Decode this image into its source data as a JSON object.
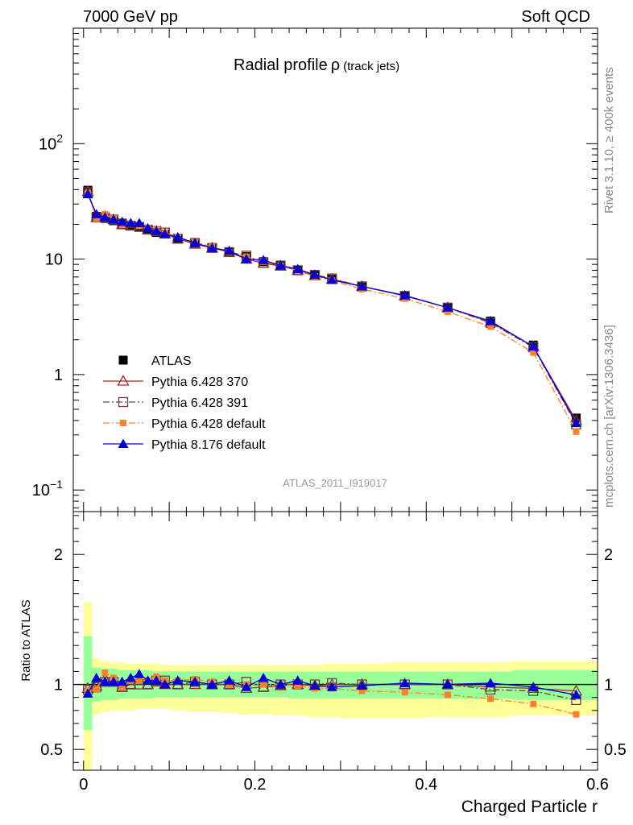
{
  "header": {
    "left": "7000 GeV pp",
    "right": "Soft QCD"
  },
  "side_text": {
    "rivet": "Rivet 3.1.10, ≥ 400k events",
    "mcplots": "mcplots.cern.ch [arXiv:1306.3436]"
  },
  "watermark": "ATLAS_2011_I919017",
  "colors": {
    "atlas": "#000000",
    "p370": "#a52a2a",
    "p391": "#6b4040",
    "p6def": "#ff7f2a",
    "p8def": "#0000dd",
    "band_inner": "#99ff99",
    "band_outer": "#ffff99"
  },
  "chart_data": [
    {
      "type": "line",
      "panel": "main",
      "title": "Radial profile",
      "title_symbol": "ρ",
      "title_suffix": "(track jets)",
      "xlabel": "",
      "ylabel": "",
      "yscale": "log",
      "xlim": [
        -0.012,
        0.6
      ],
      "ylim": [
        0.065,
        1000
      ],
      "yticks": [
        {
          "v": 0.1,
          "base": "10",
          "exp": "−1"
        },
        {
          "v": 1,
          "base": "1",
          "exp": ""
        },
        {
          "v": 10,
          "base": "10",
          "exp": ""
        },
        {
          "v": 100,
          "base": "10",
          "exp": "2"
        }
      ],
      "x": [
        0.005,
        0.015,
        0.025,
        0.035,
        0.045,
        0.055,
        0.065,
        0.075,
        0.085,
        0.095,
        0.11,
        0.13,
        0.15,
        0.17,
        0.19,
        0.21,
        0.23,
        0.25,
        0.27,
        0.29,
        0.325,
        0.375,
        0.425,
        0.475,
        0.525,
        0.575
      ],
      "series": [
        {
          "name": "ATLAS",
          "key": "atlas",
          "marker": "square",
          "line": "none",
          "values": [
            39.5,
            23.5,
            22.5,
            21.5,
            20.5,
            19.5,
            19.0,
            18.0,
            17.0,
            16.5,
            15.0,
            13.5,
            12.5,
            11.5,
            10.5,
            9.5,
            8.8,
            8.0,
            7.3,
            6.7,
            5.8,
            4.8,
            3.8,
            2.9,
            1.8,
            0.42
          ]
        },
        {
          "name": "Pythia 6.428 370",
          "key": "p370",
          "marker": "triangle-open",
          "line": "solid",
          "values": [
            38.5,
            23.0,
            23.5,
            22.0,
            20.0,
            19.5,
            19.5,
            18.0,
            17.5,
            16.5,
            15.0,
            13.5,
            12.5,
            11.5,
            10.0,
            9.2,
            8.7,
            8.0,
            7.2,
            6.7,
            5.8,
            4.8,
            3.8,
            2.85,
            1.75,
            0.4
          ]
        },
        {
          "name": "Pythia 6.428 391",
          "key": "p391",
          "marker": "square-open",
          "line": "dashdot",
          "values": [
            38.0,
            23.0,
            23.0,
            22.0,
            20.0,
            19.5,
            19.0,
            18.0,
            17.5,
            17.0,
            15.0,
            13.8,
            12.5,
            11.5,
            10.7,
            9.3,
            8.8,
            8.0,
            7.3,
            6.8,
            5.8,
            4.8,
            3.8,
            2.8,
            1.72,
            0.37
          ]
        },
        {
          "name": "Pythia 6.428 default",
          "key": "p6def",
          "marker": "square-small",
          "line": "dashdot",
          "values": [
            37.5,
            22.5,
            24.5,
            22.5,
            20.0,
            20.0,
            19.5,
            18.5,
            18.0,
            17.0,
            15.5,
            14.0,
            12.8,
            11.5,
            10.5,
            9.5,
            8.8,
            7.9,
            7.1,
            6.5,
            5.5,
            4.55,
            3.5,
            2.6,
            1.55,
            0.32
          ]
        },
        {
          "name": "Pythia 8.176 default",
          "key": "p8def",
          "marker": "triangle",
          "line": "solid",
          "values": [
            36.5,
            24.5,
            23.0,
            22.0,
            21.0,
            20.5,
            20.5,
            18.5,
            17.5,
            16.5,
            15.5,
            13.8,
            12.5,
            11.8,
            10.0,
            9.8,
            8.8,
            8.2,
            7.3,
            6.6,
            5.8,
            4.85,
            3.8,
            2.9,
            1.75,
            0.38
          ]
        }
      ]
    },
    {
      "type": "line",
      "panel": "ratio",
      "xlabel": "Charged Particle r",
      "ylabel": "Ratio to ATLAS",
      "xlim": [
        -0.012,
        0.6
      ],
      "ylim": [
        0.34,
        2.33
      ],
      "yticks": [
        {
          "v": 0.5,
          "label": "0.5"
        },
        {
          "v": 1,
          "label": "1"
        },
        {
          "v": 2,
          "label": "2"
        }
      ],
      "xticks": [
        {
          "v": 0,
          "label": "0"
        },
        {
          "v": 0.2,
          "label": "0.2"
        },
        {
          "v": 0.4,
          "label": "0.4"
        },
        {
          "v": 0.6,
          "label": "0.6"
        }
      ],
      "band_edges": [
        0.0,
        0.01,
        0.02,
        0.03,
        0.04,
        0.05,
        0.06,
        0.07,
        0.08,
        0.09,
        0.1,
        0.12,
        0.14,
        0.16,
        0.18,
        0.2,
        0.22,
        0.24,
        0.26,
        0.28,
        0.3,
        0.35,
        0.4,
        0.45,
        0.5,
        0.55,
        0.6
      ],
      "band_inner": [
        [
          0.65,
          1.37
        ],
        [
          0.87,
          1.13
        ],
        [
          0.88,
          1.12
        ],
        [
          0.88,
          1.12
        ],
        [
          0.89,
          1.11
        ],
        [
          0.89,
          1.11
        ],
        [
          0.89,
          1.11
        ],
        [
          0.89,
          1.11
        ],
        [
          0.9,
          1.1
        ],
        [
          0.9,
          1.1
        ],
        [
          0.9,
          1.1
        ],
        [
          0.9,
          1.1
        ],
        [
          0.9,
          1.1
        ],
        [
          0.9,
          1.1
        ],
        [
          0.9,
          1.1
        ],
        [
          0.9,
          1.1
        ],
        [
          0.9,
          1.1
        ],
        [
          0.89,
          1.1
        ],
        [
          0.89,
          1.1
        ],
        [
          0.89,
          1.1
        ],
        [
          0.89,
          1.1
        ],
        [
          0.89,
          1.1
        ],
        [
          0.89,
          1.1
        ],
        [
          0.89,
          1.1
        ],
        [
          0.88,
          1.11
        ],
        [
          0.88,
          1.11
        ]
      ],
      "band_outer": [
        [
          0.33,
          1.63
        ],
        [
          0.77,
          1.2
        ],
        [
          0.79,
          1.18
        ],
        [
          0.8,
          1.17
        ],
        [
          0.8,
          1.17
        ],
        [
          0.8,
          1.16
        ],
        [
          0.81,
          1.16
        ],
        [
          0.81,
          1.16
        ],
        [
          0.81,
          1.16
        ],
        [
          0.81,
          1.15
        ],
        [
          0.8,
          1.15
        ],
        [
          0.79,
          1.15
        ],
        [
          0.79,
          1.15
        ],
        [
          0.78,
          1.15
        ],
        [
          0.77,
          1.15
        ],
        [
          0.77,
          1.15
        ],
        [
          0.76,
          1.15
        ],
        [
          0.76,
          1.15
        ],
        [
          0.75,
          1.15
        ],
        [
          0.75,
          1.16
        ],
        [
          0.74,
          1.16
        ],
        [
          0.74,
          1.17
        ],
        [
          0.75,
          1.17
        ],
        [
          0.75,
          1.17
        ],
        [
          0.76,
          1.18
        ],
        [
          0.76,
          1.18
        ]
      ],
      "series": [
        {
          "name": "Pythia 6.428 370",
          "key": "p370",
          "marker": "triangle-open",
          "line": "solid",
          "values": [
            0.97,
            0.99,
            1.04,
            1.02,
            0.98,
            1.0,
            1.03,
            1.0,
            1.02,
            1.0,
            1.0,
            1.0,
            1.0,
            1.0,
            0.97,
            0.98,
            0.99,
            1.0,
            0.99,
            1.0,
            1.0,
            1.0,
            1.0,
            0.98,
            0.97,
            0.95
          ]
        },
        {
          "name": "Pythia 6.428 391",
          "key": "p391",
          "marker": "square-open",
          "line": "dashdot",
          "values": [
            0.96,
            0.98,
            1.02,
            1.02,
            0.98,
            1.0,
            1.0,
            1.0,
            1.03,
            1.03,
            1.0,
            1.02,
            1.0,
            1.0,
            1.02,
            0.98,
            1.0,
            1.0,
            1.0,
            1.01,
            1.0,
            1.0,
            1.0,
            0.96,
            0.95,
            0.88
          ]
        },
        {
          "name": "Pythia 6.428 default",
          "key": "p6def",
          "marker": "square-small",
          "line": "dashdot",
          "values": [
            0.95,
            0.96,
            1.09,
            1.05,
            0.98,
            1.03,
            1.03,
            1.03,
            1.06,
            1.03,
            1.03,
            1.04,
            1.02,
            1.0,
            1.0,
            1.0,
            1.0,
            0.99,
            0.97,
            0.97,
            0.95,
            0.94,
            0.92,
            0.89,
            0.85,
            0.77
          ]
        },
        {
          "name": "Pythia 8.176 default",
          "key": "p8def",
          "marker": "triangle",
          "line": "solid",
          "values": [
            0.93,
            1.05,
            1.02,
            1.02,
            1.02,
            1.05,
            1.08,
            1.03,
            1.03,
            1.0,
            1.03,
            1.02,
            1.0,
            1.03,
            0.98,
            1.05,
            1.0,
            1.03,
            0.99,
            0.98,
            0.99,
            1.01,
            1.0,
            1.01,
            0.98,
            0.92
          ]
        }
      ]
    }
  ]
}
